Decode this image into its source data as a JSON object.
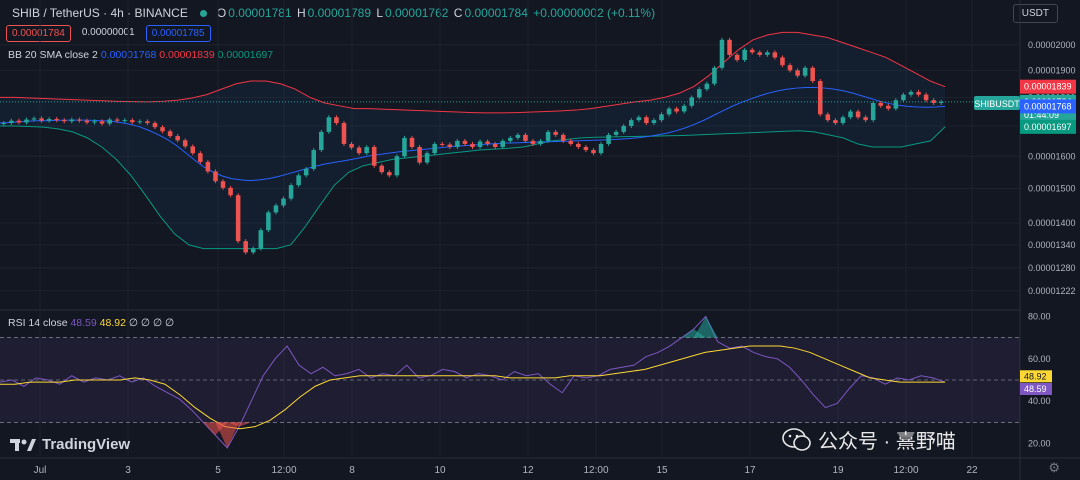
{
  "header": {
    "symbol": "SHIB / TetherUS · 4h · BINANCE",
    "o_label": "O",
    "o": "0.00001781",
    "h_label": "H",
    "h": "0.00001789",
    "l_label": "L",
    "l": "0.00001762",
    "c_label": "C",
    "c": "0.00001784",
    "change": "+0.00000002 (+0.11%)",
    "bid": "0.00001784",
    "spread": "0.00000001",
    "ask": "0.00001785"
  },
  "currency_button": "USDT",
  "bb_legend": {
    "name": "BB 20 SMA close 2",
    "basis": "0.00001768",
    "upper": "0.00001839",
    "lower": "0.00001697"
  },
  "rsi_legend": {
    "name": "RSI 14 close",
    "rsi": "48.59",
    "ma": "48.92",
    "extra": "∅ ∅ ∅ ∅"
  },
  "symbol_tag": "SHIBUSDT",
  "countdown": "01:44:09",
  "brand": "TradingView",
  "watermark": "公众号 · 熹野喵",
  "colors": {
    "up": "#26a69a",
    "down": "#ef5350",
    "basis": "#2962ff",
    "upper": "#f23645",
    "lower": "#089981",
    "rsi": "#7e57c2",
    "rsi_ma": "#fdd835"
  },
  "chart_data": [
    {
      "type": "line",
      "title": "SHIB / TetherUS · 4h · BINANCE",
      "chart_kind": "candlestick with Bollinger Bands",
      "y_ticks": [
        "0.00002000",
        "0.00001900",
        "0.00001800",
        "0.00001700",
        "0.00001600",
        "0.00001500",
        "0.00001400",
        "0.00001340",
        "0.00001280",
        "0.00001222"
      ],
      "x_ticks": [
        "Jul",
        "3",
        "5",
        "12:00",
        "8",
        "10",
        "12",
        "12:00",
        "15",
        "17",
        "19",
        "12:00",
        "22"
      ],
      "ylim": [
        1.2e-05,
        2.06e-05
      ],
      "scale": "log",
      "price_labels": [
        {
          "name": "BB upper",
          "value": "0.00001839"
        },
        {
          "name": "last",
          "value": "0.00001784"
        },
        {
          "name": "BB basis",
          "value": "0.00001768"
        },
        {
          "name": "BB lower",
          "value": "0.00001697"
        }
      ],
      "series": [
        {
          "name": "close",
          "values": [
            1.71e-05,
            1.718e-05,
            1.712e-05,
            1.722e-05,
            1.726e-05,
            1.718e-05,
            1.724e-05,
            1.72e-05,
            1.716e-05,
            1.722e-05,
            1.718e-05,
            1.712e-05,
            1.716e-05,
            1.708e-05,
            1.722e-05,
            1.718e-05,
            1.72e-05,
            1.713e-05,
            1.716e-05,
            1.71e-05,
            1.696e-05,
            1.682e-05,
            1.666e-05,
            1.652e-05,
            1.632e-05,
            1.61e-05,
            1.582e-05,
            1.552e-05,
            1.522e-05,
            1.502e-05,
            1.48e-05,
            1.35e-05,
            1.32e-05,
            1.33e-05,
            1.38e-05,
            1.43e-05,
            1.45e-05,
            1.47e-05,
            1.51e-05,
            1.54e-05,
            1.56e-05,
            1.62e-05,
            1.68e-05,
            1.73e-05,
            1.71e-05,
            1.64e-05,
            1.628e-05,
            1.61e-05,
            1.63e-05,
            1.57e-05,
            1.55e-05,
            1.54e-05,
            1.6e-05,
            1.66e-05,
            1.63e-05,
            1.58e-05,
            1.61e-05,
            1.64e-05,
            1.638e-05,
            1.63e-05,
            1.65e-05,
            1.64e-05,
            1.63e-05,
            1.648e-05,
            1.64e-05,
            1.63e-05,
            1.65e-05,
            1.66e-05,
            1.67e-05,
            1.65e-05,
            1.64e-05,
            1.65e-05,
            1.68e-05,
            1.67e-05,
            1.65e-05,
            1.64e-05,
            1.63e-05,
            1.62e-05,
            1.61e-05,
            1.64e-05,
            1.67e-05,
            1.68e-05,
            1.7e-05,
            1.72e-05,
            1.73e-05,
            1.71e-05,
            1.72e-05,
            1.74e-05,
            1.76e-05,
            1.75e-05,
            1.77e-05,
            1.8e-05,
            1.83e-05,
            1.85e-05,
            1.91e-05,
            2.02e-05,
            1.96e-05,
            1.94e-05,
            1.98e-05,
            1.97e-05,
            1.96e-05,
            1.97e-05,
            1.95e-05,
            1.92e-05,
            1.9e-05,
            1.88e-05,
            1.91e-05,
            1.86e-05,
            1.74e-05,
            1.72e-05,
            1.71e-05,
            1.73e-05,
            1.75e-05,
            1.73e-05,
            1.72e-05,
            1.78e-05,
            1.77e-05,
            1.76e-05,
            1.79e-05,
            1.81e-05,
            1.82e-05,
            1.81e-05,
            1.79e-05,
            1.78e-05,
            1.784e-05
          ]
        },
        {
          "name": "BB 20 basis",
          "values": [
            1.71e-05,
            1.712e-05,
            1.714e-05,
            1.716e-05,
            1.718e-05,
            1.718e-05,
            1.719e-05,
            1.72e-05,
            1.72e-05,
            1.72e-05,
            1.719e-05,
            1.718e-05,
            1.716e-05,
            1.712e-05,
            1.706e-05,
            1.698e-05,
            1.686e-05,
            1.672e-05,
            1.656e-05,
            1.636e-05,
            1.612e-05,
            1.588e-05,
            1.566e-05,
            1.55e-05,
            1.538e-05,
            1.53e-05,
            1.526e-05,
            1.524e-05,
            1.526e-05,
            1.53e-05,
            1.536e-05,
            1.544e-05,
            1.552e-05,
            1.56e-05,
            1.568e-05,
            1.575e-05,
            1.58e-05,
            1.585e-05,
            1.59e-05,
            1.596e-05,
            1.602e-05,
            1.606e-05,
            1.61e-05,
            1.614e-05,
            1.617e-05,
            1.62e-05,
            1.623e-05,
            1.626e-05,
            1.629e-05,
            1.632e-05,
            1.634e-05,
            1.636e-05,
            1.638e-05,
            1.64e-05,
            1.642e-05,
            1.643e-05,
            1.644e-05,
            1.645e-05,
            1.646e-05,
            1.647e-05,
            1.648e-05,
            1.649e-05,
            1.65e-05,
            1.651e-05,
            1.652e-05,
            1.653e-05,
            1.654e-05,
            1.656e-05,
            1.658e-05,
            1.661e-05,
            1.665e-05,
            1.67e-05,
            1.676e-05,
            1.684e-05,
            1.694e-05,
            1.706e-05,
            1.72e-05,
            1.736e-05,
            1.752e-05,
            1.768e-05,
            1.782e-05,
            1.794e-05,
            1.806e-05,
            1.816e-05,
            1.824e-05,
            1.83e-05,
            1.834e-05,
            1.836e-05,
            1.836e-05,
            1.834e-05,
            1.83e-05,
            1.824e-05,
            1.816e-05,
            1.806e-05,
            1.796e-05,
            1.786e-05,
            1.778e-05,
            1.772e-05,
            1.768e-05,
            1.766e-05,
            1.765e-05,
            1.766e-05,
            1.768e-05
          ]
        },
        {
          "name": "BB 20 upper",
          "values": [
            1.8e-05,
            1.8e-05,
            1.798e-05,
            1.796e-05,
            1.794e-05,
            1.792e-05,
            1.79e-05,
            1.788e-05,
            1.786e-05,
            1.785e-05,
            1.784e-05,
            1.786e-05,
            1.79e-05,
            1.798e-05,
            1.81e-05,
            1.83e-05,
            1.85e-05,
            1.86e-05,
            1.86e-05,
            1.85e-05,
            1.83e-05,
            1.8e-05,
            1.78e-05,
            1.77e-05,
            1.76e-05,
            1.76e-05,
            1.758e-05,
            1.756e-05,
            1.754e-05,
            1.752e-05,
            1.75e-05,
            1.748e-05,
            1.746e-05,
            1.745e-05,
            1.745e-05,
            1.746e-05,
            1.748e-05,
            1.75e-05,
            1.752e-05,
            1.755e-05,
            1.76e-05,
            1.768e-05,
            1.776e-05,
            1.784e-05,
            1.79e-05,
            1.8e-05,
            1.815e-05,
            1.84e-05,
            1.88e-05,
            1.93e-05,
            1.98e-05,
            2.02e-05,
            2.04e-05,
            2.05e-05,
            2.05e-05,
            2.04e-05,
            2.03e-05,
            2.01e-05,
            1.99e-05,
            1.97e-05,
            1.95e-05,
            1.92e-05,
            1.89e-05,
            1.86e-05,
            1.839e-05
          ]
        },
        {
          "name": "BB 20 lower",
          "values": [
            1.7e-05,
            1.7e-05,
            1.698e-05,
            1.696e-05,
            1.69e-05,
            1.68e-05,
            1.66e-05,
            1.63e-05,
            1.59e-05,
            1.54e-05,
            1.48e-05,
            1.42e-05,
            1.37e-05,
            1.34e-05,
            1.33e-05,
            1.33e-05,
            1.33e-05,
            1.33e-05,
            1.33e-05,
            1.33e-05,
            1.34e-05,
            1.39e-05,
            1.45e-05,
            1.51e-05,
            1.55e-05,
            1.57e-05,
            1.58e-05,
            1.59e-05,
            1.595e-05,
            1.6e-05,
            1.605e-05,
            1.61e-05,
            1.615e-05,
            1.62e-05,
            1.623e-05,
            1.626e-05,
            1.63e-05,
            1.64e-05,
            1.65e-05,
            1.655e-05,
            1.66e-05,
            1.662e-05,
            1.663e-05,
            1.664e-05,
            1.665e-05,
            1.666e-05,
            1.667e-05,
            1.668e-05,
            1.67e-05,
            1.672e-05,
            1.674e-05,
            1.676e-05,
            1.678e-05,
            1.68e-05,
            1.682e-05,
            1.684e-05,
            1.68e-05,
            1.67e-05,
            1.66e-05,
            1.64e-05,
            1.63e-05,
            1.63e-05,
            1.63e-05,
            1.64e-05,
            1.65e-05,
            1.697e-05
          ]
        }
      ]
    },
    {
      "type": "line",
      "title": "RSI 14 close",
      "y_ticks": [
        "80.00",
        "60.00",
        "40.00",
        "20.00"
      ],
      "bands": [
        30,
        50,
        70
      ],
      "ylim": [
        17,
        83
      ],
      "price_labels": [
        {
          "name": "RSI-based MA",
          "value": "48.92"
        },
        {
          "name": "RSI",
          "value": "48.59"
        }
      ],
      "series": [
        {
          "name": "RSI",
          "values": [
            49,
            50,
            47,
            51,
            50,
            48,
            52,
            49,
            51,
            50,
            52,
            49,
            51,
            47,
            44,
            41,
            36,
            30,
            24,
            18,
            28,
            40,
            52,
            60,
            66,
            57,
            53,
            56,
            52,
            53,
            55,
            51,
            53,
            52,
            57,
            51,
            52,
            55,
            54,
            51,
            53,
            52,
            50,
            54,
            52,
            53,
            48,
            44,
            52,
            51,
            52,
            55,
            56,
            57,
            61,
            63,
            66,
            70,
            74,
            80,
            68,
            65,
            66,
            63,
            61,
            60,
            56,
            50,
            43,
            37,
            39,
            46,
            52,
            51,
            48,
            51,
            50,
            52,
            51,
            49
          ]
        },
        {
          "name": "RSI-based MA",
          "values": [
            48,
            48,
            49,
            49,
            49,
            50,
            50,
            50,
            50,
            51,
            50,
            48,
            43,
            37,
            32,
            28,
            27,
            28,
            31,
            36,
            42,
            47,
            50,
            51,
            52,
            52,
            52,
            52,
            52,
            52,
            52,
            52,
            52,
            52,
            51,
            51,
            51,
            51,
            52,
            52,
            52,
            53,
            54,
            55,
            57,
            59,
            61,
            63,
            64,
            65,
            66,
            66,
            66,
            65,
            63,
            60,
            57,
            54,
            51,
            50,
            49,
            49,
            49,
            49
          ]
        }
      ]
    }
  ]
}
